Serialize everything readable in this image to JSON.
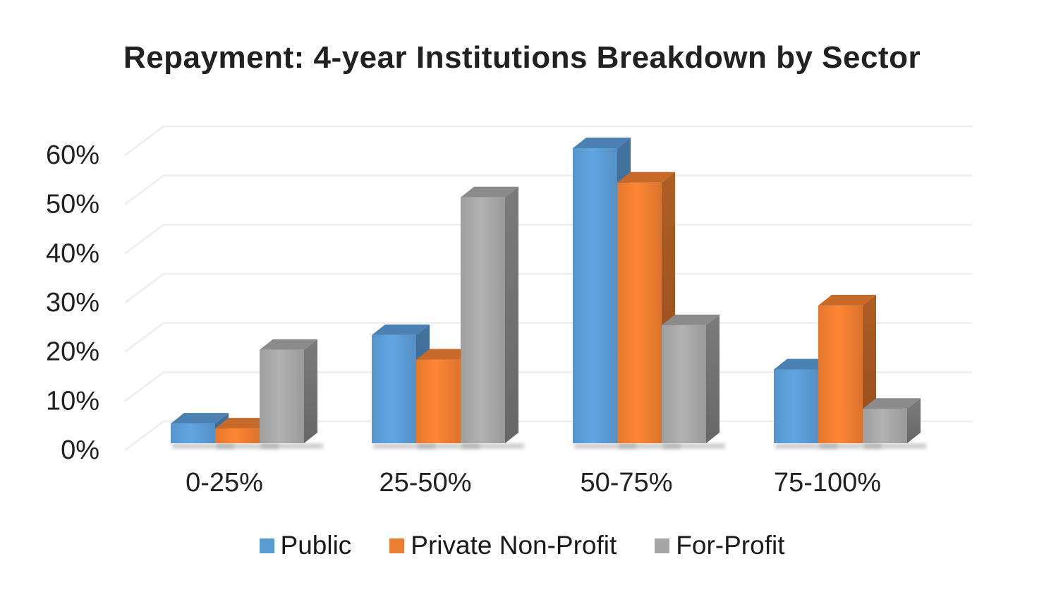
{
  "page": {
    "background": "#ffffff"
  },
  "chart_data": {
    "type": "bar",
    "variant": "3d-clustered-column",
    "title": "Repayment: 4-year Institutions Breakdown by Sector",
    "categories": [
      "0-25%",
      "25-50%",
      "50-75%",
      "75-100%"
    ],
    "series": [
      {
        "name": "Public",
        "color": "#5B9BD5",
        "values": [
          4,
          22,
          60,
          15
        ]
      },
      {
        "name": "Private Non-Profit",
        "color": "#ED7D31",
        "values": [
          3,
          17,
          53,
          28
        ]
      },
      {
        "name": "For-Profit",
        "color": "#A6A6A6",
        "values": [
          19,
          50,
          24,
          7
        ]
      }
    ],
    "xlabel": "",
    "ylabel": "",
    "y_ticks": [
      "0%",
      "10%",
      "20%",
      "30%",
      "40%",
      "50%",
      "60%"
    ],
    "ylim": [
      0,
      60
    ],
    "y_tick_step": 10,
    "grid": true,
    "gridline_color": "#ededed",
    "text_color": "#212121",
    "legend_position": "bottom"
  }
}
